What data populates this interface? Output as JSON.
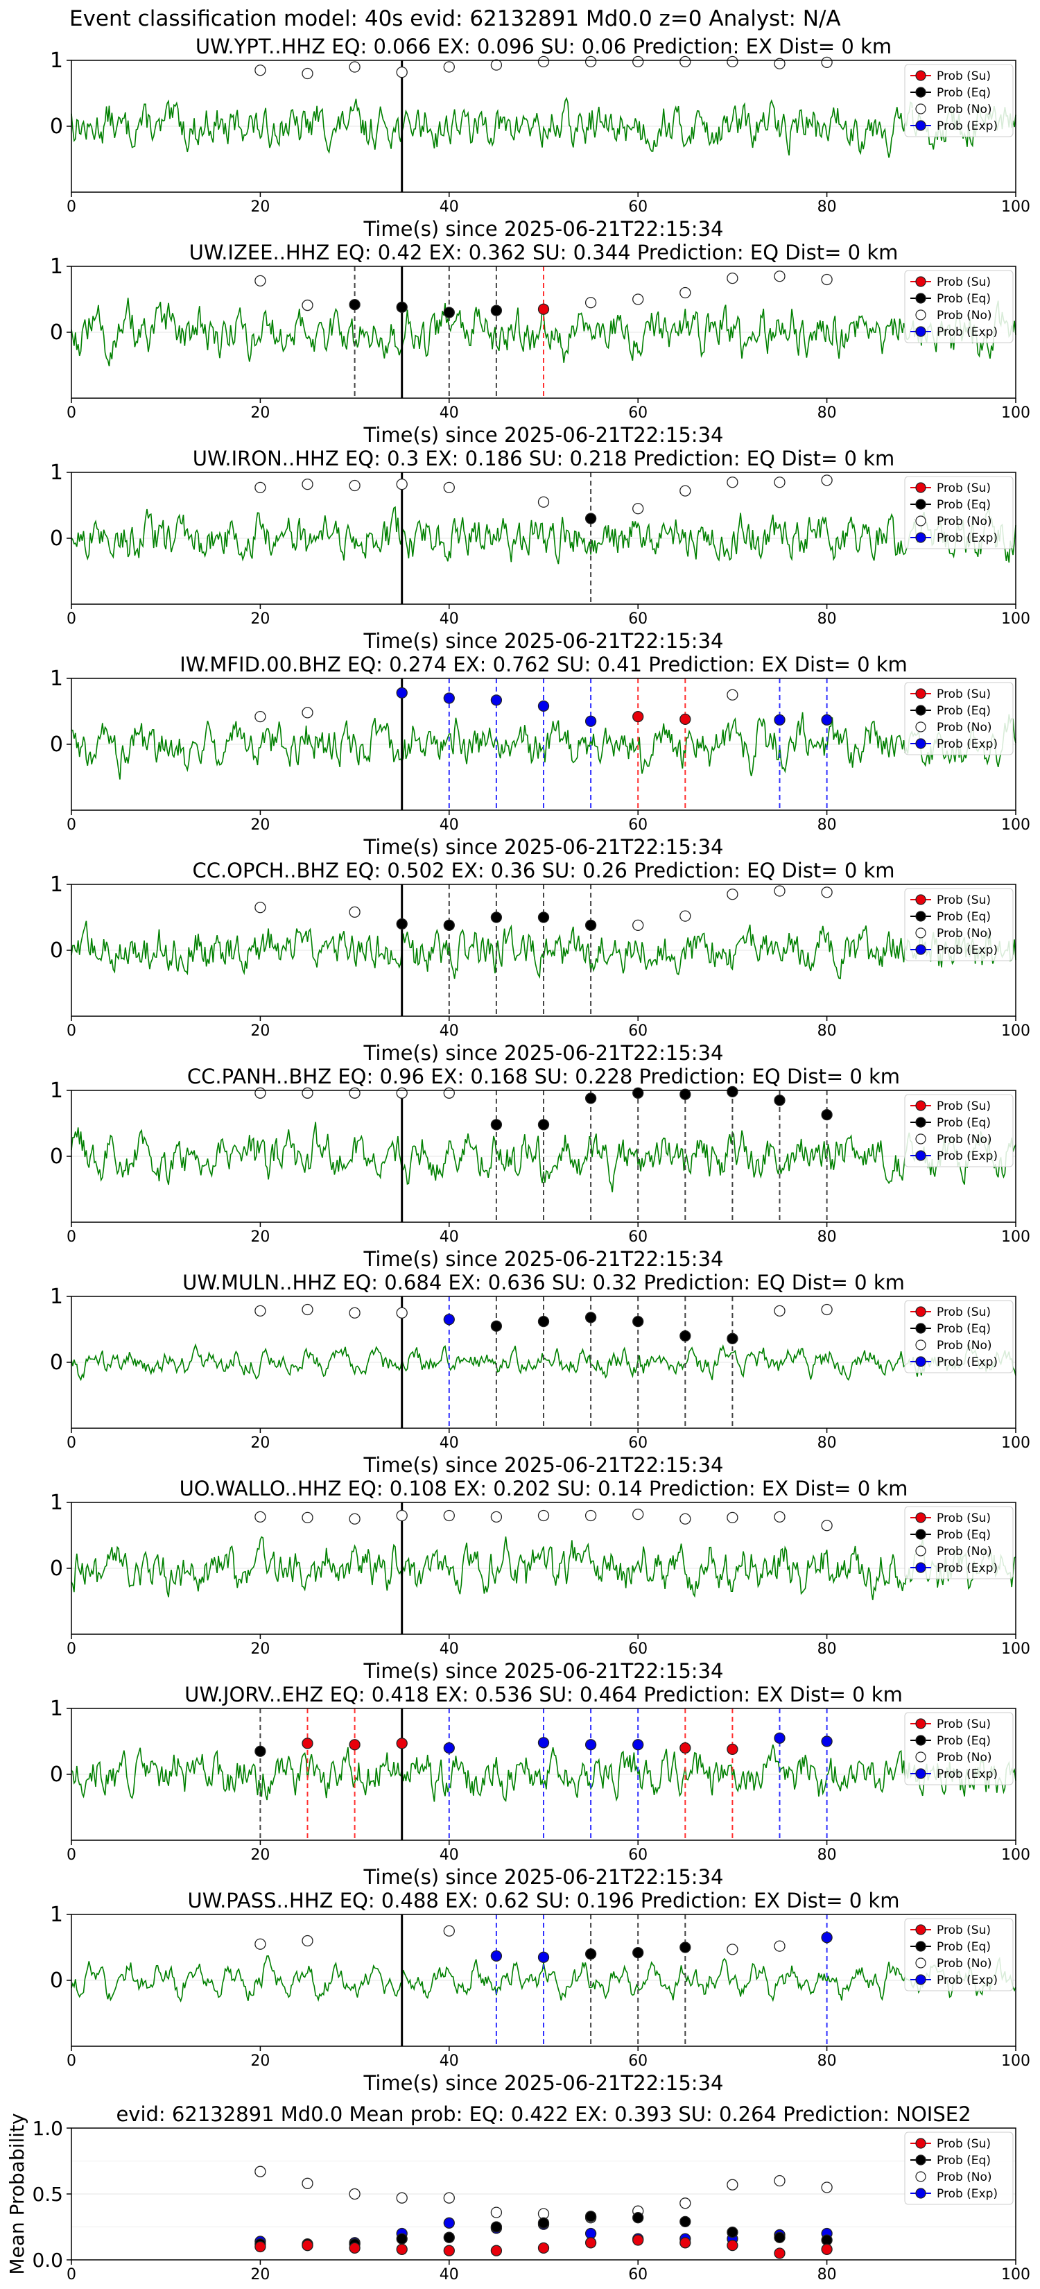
{
  "suptitle": "Event classification model: 40s evid: 62132891 Md0.0 z=0 Analyst: N/A",
  "legend": [
    "Prob (Su)",
    "Prob (Eq)",
    "Prob (No)",
    "Prob (Exp)"
  ],
  "colors": {
    "su": "#e8000b",
    "eq": "#000000",
    "no": "#ffffff",
    "exp": "#0000ee",
    "trace": "#008000",
    "p_line": "#000000",
    "lines": {
      "eq": "#444444",
      "su": "#ff3030",
      "exp": "#3030ff"
    }
  },
  "chart_data": [
    {
      "type": "line",
      "title": "UW.YPT..HHZ   EQ: 0.066  EX: 0.096  SU: 0.06   Prediction: EX    Dist= 0 km",
      "xlabel": "Time(s) since 2025-06-21T22:15:34",
      "xlim": [
        0,
        100
      ],
      "ylim": [
        -1,
        1
      ],
      "xticks": [
        0,
        20,
        40,
        60,
        80,
        100
      ],
      "yticks": [
        1,
        0
      ],
      "p_time": 35,
      "points": {
        "no": [
          [
            20,
            0.85
          ],
          [
            25,
            0.8
          ],
          [
            30,
            0.9
          ],
          [
            35,
            0.82
          ],
          [
            40,
            0.9
          ],
          [
            45,
            0.93
          ],
          [
            50,
            0.98
          ],
          [
            55,
            0.98
          ],
          [
            60,
            0.98
          ],
          [
            65,
            0.98
          ],
          [
            70,
            0.98
          ],
          [
            75,
            0.95
          ],
          [
            80,
            0.97
          ]
        ],
        "eq": [],
        "su": [],
        "exp": []
      },
      "lines": {
        "eq": [],
        "su": [],
        "exp": []
      }
    },
    {
      "type": "line",
      "title": "UW.IZEE..HHZ   EQ: 0.42  EX: 0.362  SU: 0.344   Prediction: EQ    Dist= 0 km",
      "xlabel": "Time(s) since 2025-06-21T22:15:34",
      "xlim": [
        0,
        100
      ],
      "ylim": [
        -1,
        1
      ],
      "xticks": [
        0,
        20,
        40,
        60,
        80,
        100
      ],
      "yticks": [
        1,
        0
      ],
      "p_time": 35,
      "points": {
        "no": [
          [
            20,
            0.78
          ],
          [
            25,
            0.41
          ],
          [
            55,
            0.45
          ],
          [
            60,
            0.5
          ],
          [
            65,
            0.6
          ],
          [
            70,
            0.82
          ],
          [
            75,
            0.85
          ],
          [
            80,
            0.8
          ]
        ],
        "eq": [
          [
            30,
            0.42
          ],
          [
            35,
            0.38
          ],
          [
            40,
            0.3
          ],
          [
            45,
            0.33
          ]
        ],
        "su": [
          [
            50,
            0.35
          ]
        ],
        "exp": []
      },
      "lines": {
        "eq": [
          30,
          40,
          45
        ],
        "su": [
          50
        ],
        "exp": []
      }
    },
    {
      "type": "line",
      "title": "UW.IRON..HHZ   EQ: 0.3  EX: 0.186  SU: 0.218   Prediction: EQ    Dist= 0 km",
      "xlabel": "Time(s) since 2025-06-21T22:15:34",
      "xlim": [
        0,
        100
      ],
      "ylim": [
        -1,
        1
      ],
      "xticks": [
        0,
        20,
        40,
        60,
        80,
        100
      ],
      "yticks": [
        1,
        0
      ],
      "p_time": 35,
      "points": {
        "no": [
          [
            20,
            0.77
          ],
          [
            25,
            0.82
          ],
          [
            30,
            0.8
          ],
          [
            35,
            0.82
          ],
          [
            40,
            0.77
          ],
          [
            50,
            0.55
          ],
          [
            60,
            0.45
          ],
          [
            65,
            0.72
          ],
          [
            70,
            0.85
          ],
          [
            75,
            0.85
          ],
          [
            80,
            0.88
          ]
        ],
        "eq": [
          [
            55,
            0.3
          ]
        ],
        "su": [],
        "exp": []
      },
      "lines": {
        "eq": [
          55
        ],
        "su": [],
        "exp": []
      }
    },
    {
      "type": "line",
      "title": "IW.MFID.00.BHZ   EQ: 0.274  EX: 0.762  SU: 0.41   Prediction: EX    Dist= 0 km",
      "xlabel": "Time(s) since 2025-06-21T22:15:34",
      "xlim": [
        0,
        100
      ],
      "ylim": [
        -1,
        1
      ],
      "xticks": [
        0,
        20,
        40,
        60,
        80,
        100
      ],
      "yticks": [
        1,
        0
      ],
      "p_time": 35,
      "points": {
        "no": [
          [
            20,
            0.42
          ],
          [
            25,
            0.48
          ],
          [
            70,
            0.75
          ]
        ],
        "eq": [],
        "su": [
          [
            60,
            0.42
          ],
          [
            65,
            0.38
          ]
        ],
        "exp": [
          [
            35,
            0.78
          ],
          [
            40,
            0.7
          ],
          [
            45,
            0.67
          ],
          [
            50,
            0.58
          ],
          [
            55,
            0.35
          ],
          [
            75,
            0.37
          ],
          [
            80,
            0.37
          ]
        ]
      },
      "lines": {
        "eq": [],
        "su": [
          60,
          65
        ],
        "exp": [
          40,
          45,
          50,
          55,
          75,
          80
        ]
      }
    },
    {
      "type": "line",
      "title": "CC.OPCH..BHZ   EQ: 0.502  EX: 0.36  SU: 0.26   Prediction: EQ    Dist= 0 km",
      "xlabel": "Time(s) since 2025-06-21T22:15:34",
      "xlim": [
        0,
        100
      ],
      "ylim": [
        -1,
        1
      ],
      "xticks": [
        0,
        20,
        40,
        60,
        80,
        100
      ],
      "yticks": [
        1,
        0
      ],
      "p_time": 35,
      "points": {
        "no": [
          [
            20,
            0.65
          ],
          [
            30,
            0.58
          ],
          [
            60,
            0.38
          ],
          [
            65,
            0.52
          ],
          [
            70,
            0.85
          ],
          [
            75,
            0.9
          ],
          [
            80,
            0.88
          ]
        ],
        "eq": [
          [
            35,
            0.4
          ],
          [
            40,
            0.38
          ],
          [
            45,
            0.5
          ],
          [
            50,
            0.5
          ],
          [
            55,
            0.38
          ]
        ],
        "su": [],
        "exp": []
      },
      "lines": {
        "eq": [
          40,
          45,
          50,
          55
        ],
        "su": [],
        "exp": []
      }
    },
    {
      "type": "line",
      "title": "CC.PANH..BHZ   EQ: 0.96  EX: 0.168  SU: 0.228   Prediction: EQ    Dist= 0 km",
      "xlabel": "Time(s) since 2025-06-21T22:15:34",
      "xlim": [
        0,
        100
      ],
      "ylim": [
        -1,
        1
      ],
      "xticks": [
        0,
        20,
        40,
        60,
        80,
        100
      ],
      "yticks": [
        1,
        0
      ],
      "p_time": 35,
      "points": {
        "no": [
          [
            20,
            0.96
          ],
          [
            25,
            0.96
          ],
          [
            30,
            0.96
          ],
          [
            35,
            0.96
          ],
          [
            40,
            0.96
          ]
        ],
        "eq": [
          [
            45,
            0.48
          ],
          [
            50,
            0.48
          ],
          [
            55,
            0.88
          ],
          [
            60,
            0.96
          ],
          [
            65,
            0.94
          ],
          [
            70,
            0.98
          ],
          [
            75,
            0.85
          ],
          [
            80,
            0.63
          ]
        ],
        "su": [],
        "exp": []
      },
      "lines": {
        "eq": [
          45,
          50,
          55,
          60,
          65,
          70,
          75,
          80
        ],
        "su": [],
        "exp": []
      }
    },
    {
      "type": "line",
      "title": "UW.MULN..HHZ   EQ: 0.684  EX: 0.636  SU: 0.32   Prediction: EQ    Dist= 0 km",
      "xlabel": "Time(s) since 2025-06-21T22:15:34",
      "xlim": [
        0,
        100
      ],
      "ylim": [
        -1,
        1
      ],
      "xticks": [
        0,
        20,
        40,
        60,
        80,
        100
      ],
      "yticks": [
        1,
        0
      ],
      "p_time": 35,
      "points": {
        "no": [
          [
            20,
            0.78
          ],
          [
            25,
            0.8
          ],
          [
            30,
            0.75
          ],
          [
            35,
            0.75
          ],
          [
            75,
            0.78
          ],
          [
            80,
            0.8
          ]
        ],
        "eq": [
          [
            45,
            0.55
          ],
          [
            50,
            0.62
          ],
          [
            55,
            0.68
          ],
          [
            60,
            0.62
          ],
          [
            65,
            0.4
          ],
          [
            70,
            0.36
          ]
        ],
        "su": [],
        "exp": [
          [
            40,
            0.65
          ]
        ]
      },
      "lines": {
        "eq": [
          45,
          50,
          55,
          60,
          65,
          70
        ],
        "su": [],
        "exp": [
          40
        ]
      }
    },
    {
      "type": "line",
      "title": "UO.WALLO..HHZ   EQ: 0.108  EX: 0.202  SU: 0.14   Prediction: EX    Dist= 0 km",
      "xlabel": "Time(s) since 2025-06-21T22:15:34",
      "xlim": [
        0,
        100
      ],
      "ylim": [
        -1,
        1
      ],
      "xticks": [
        0,
        20,
        40,
        60,
        80,
        100
      ],
      "yticks": [
        1,
        0
      ],
      "p_time": 35,
      "points": {
        "no": [
          [
            20,
            0.78
          ],
          [
            25,
            0.77
          ],
          [
            30,
            0.75
          ],
          [
            35,
            0.8
          ],
          [
            40,
            0.8
          ],
          [
            45,
            0.78
          ],
          [
            50,
            0.8
          ],
          [
            55,
            0.8
          ],
          [
            60,
            0.82
          ],
          [
            65,
            0.75
          ],
          [
            70,
            0.77
          ],
          [
            75,
            0.78
          ],
          [
            80,
            0.65
          ]
        ],
        "eq": [],
        "su": [],
        "exp": []
      },
      "lines": {
        "eq": [],
        "su": [],
        "exp": []
      }
    },
    {
      "type": "line",
      "title": "UW.JORV..EHZ   EQ: 0.418  EX: 0.536  SU: 0.464   Prediction: EX    Dist= 0 km",
      "xlabel": "Time(s) since 2025-06-21T22:15:34",
      "xlim": [
        0,
        100
      ],
      "ylim": [
        -1,
        1
      ],
      "xticks": [
        0,
        20,
        40,
        60,
        80,
        100
      ],
      "yticks": [
        1,
        0
      ],
      "p_time": 35,
      "points": {
        "no": [],
        "eq": [
          [
            20,
            0.35
          ]
        ],
        "su": [
          [
            25,
            0.47
          ],
          [
            30,
            0.45
          ],
          [
            35,
            0.47
          ],
          [
            65,
            0.4
          ],
          [
            70,
            0.38
          ]
        ],
        "exp": [
          [
            40,
            0.4
          ],
          [
            50,
            0.48
          ],
          [
            55,
            0.45
          ],
          [
            60,
            0.45
          ],
          [
            75,
            0.55
          ],
          [
            80,
            0.5
          ]
        ]
      },
      "lines": {
        "eq": [
          20
        ],
        "su": [
          25,
          30,
          65,
          70
        ],
        "exp": [
          40,
          50,
          55,
          60,
          75,
          80
        ]
      }
    },
    {
      "type": "line",
      "title": "UW.PASS..HHZ   EQ: 0.488  EX: 0.62  SU: 0.196   Prediction: EX    Dist= 0 km",
      "xlabel": "Time(s) since 2025-06-21T22:15:34",
      "xlim": [
        0,
        100
      ],
      "ylim": [
        -1,
        1
      ],
      "xticks": [
        0,
        20,
        40,
        60,
        80,
        100
      ],
      "yticks": [
        1,
        0
      ],
      "p_time": 35,
      "points": {
        "no": [
          [
            20,
            0.55
          ],
          [
            25,
            0.6
          ],
          [
            40,
            0.75
          ],
          [
            70,
            0.47
          ],
          [
            75,
            0.52
          ]
        ],
        "eq": [
          [
            55,
            0.4
          ],
          [
            60,
            0.42
          ],
          [
            65,
            0.5
          ]
        ],
        "su": [],
        "exp": [
          [
            45,
            0.37
          ],
          [
            50,
            0.35
          ],
          [
            80,
            0.65
          ]
        ]
      },
      "lines": {
        "eq": [
          55,
          60,
          65
        ],
        "su": [],
        "exp": [
          45,
          50,
          80
        ]
      }
    },
    {
      "type": "scatter",
      "title": "evid: 62132891   Md0.0   Mean prob:   EQ: 0.422  EX: 0.393  SU: 0.264   Prediction: NOISE2",
      "xlabel": "",
      "ylabel": "Mean Probability",
      "xlim": [
        0,
        100
      ],
      "ylim": [
        0,
        1
      ],
      "xticks": [
        0,
        20,
        40,
        60,
        80,
        100
      ],
      "yticks": [
        1.0,
        0.5,
        0.0
      ],
      "p_time": null,
      "points": {
        "no": [
          [
            20,
            0.67
          ],
          [
            25,
            0.58
          ],
          [
            30,
            0.5
          ],
          [
            35,
            0.47
          ],
          [
            40,
            0.47
          ],
          [
            45,
            0.36
          ],
          [
            50,
            0.35
          ],
          [
            55,
            0.32
          ],
          [
            60,
            0.37
          ],
          [
            65,
            0.43
          ],
          [
            70,
            0.57
          ],
          [
            75,
            0.6
          ],
          [
            80,
            0.55
          ]
        ],
        "eq": [
          [
            20,
            0.12
          ],
          [
            25,
            0.12
          ],
          [
            30,
            0.12
          ],
          [
            35,
            0.16
          ],
          [
            40,
            0.17
          ],
          [
            45,
            0.25
          ],
          [
            50,
            0.28
          ],
          [
            55,
            0.33
          ],
          [
            60,
            0.32
          ],
          [
            65,
            0.29
          ],
          [
            70,
            0.21
          ],
          [
            75,
            0.17
          ],
          [
            80,
            0.15
          ]
        ],
        "su": [
          [
            20,
            0.1
          ],
          [
            25,
            0.11
          ],
          [
            30,
            0.09
          ],
          [
            35,
            0.08
          ],
          [
            40,
            0.07
          ],
          [
            45,
            0.07
          ],
          [
            50,
            0.09
          ],
          [
            55,
            0.13
          ],
          [
            60,
            0.15
          ],
          [
            65,
            0.13
          ],
          [
            70,
            0.11
          ],
          [
            75,
            0.05
          ],
          [
            80,
            0.08
          ]
        ],
        "exp": [
          [
            20,
            0.14
          ],
          [
            25,
            0.11
          ],
          [
            30,
            0.13
          ],
          [
            35,
            0.2
          ],
          [
            40,
            0.28
          ],
          [
            45,
            0.24
          ],
          [
            50,
            0.27
          ],
          [
            55,
            0.2
          ],
          [
            60,
            0.16
          ],
          [
            65,
            0.16
          ],
          [
            70,
            0.16
          ],
          [
            75,
            0.19
          ],
          [
            80,
            0.2
          ]
        ]
      },
      "lines": {
        "eq": [],
        "su": [],
        "exp": []
      }
    }
  ]
}
